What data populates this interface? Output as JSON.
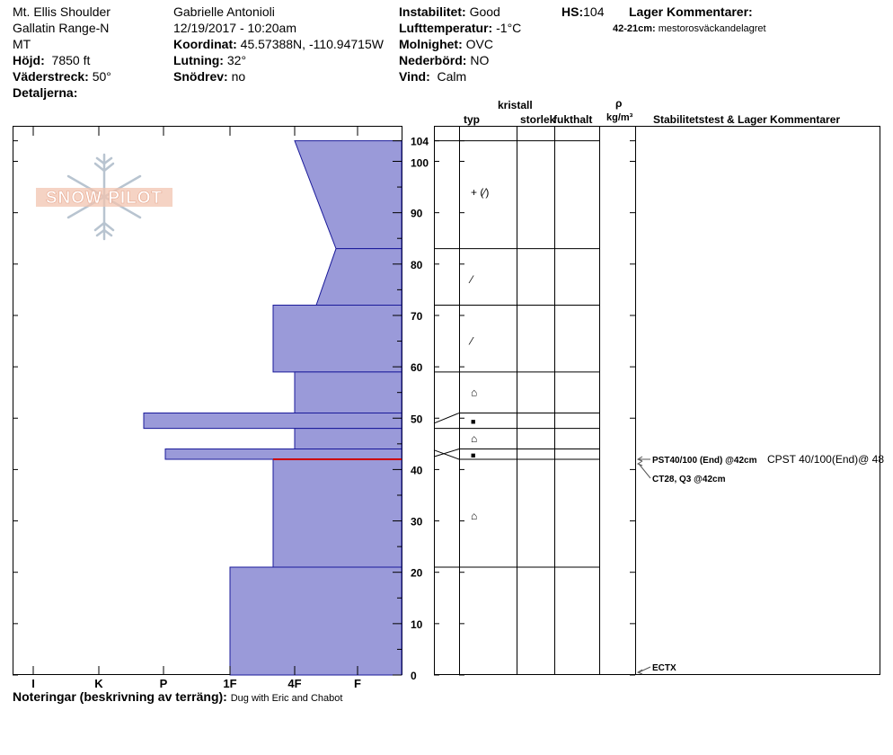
{
  "header": {
    "col1": {
      "location": "Mt. Ellis Shoulder",
      "range": "Gallatin Range-N",
      "state": "MT",
      "elevation_label": "Höjd:",
      "elevation": "7850 ft",
      "aspect_label": "Väderstreck:",
      "aspect": "50°",
      "details_label": "Detaljerna:"
    },
    "col2": {
      "observer": "Gabrielle Antonioli",
      "datetime": "12/19/2017 - 10:20am",
      "coord_label": "Koordinat:",
      "coord": "45.57388N, -110.94715W",
      "slope_label": "Lutning:",
      "slope": "32°",
      "drift_label": "Snödrev:",
      "drift": "no"
    },
    "col3": {
      "instability_label": "Instabilitet:",
      "instability": "Good",
      "airtemp_label": "Lufttemperatur:",
      "airtemp": "-1°C",
      "sky_label": "Molnighet:",
      "sky": "OVC",
      "precip_label": "Nederbörd:",
      "precip": "NO",
      "wind_label": "Vind:",
      "wind": "Calm"
    },
    "col4": {
      "hs_label": "HS:",
      "hs": "104",
      "layer_comments_label": "Lager Kommentarer:",
      "layer_comment_depth": "42-21cm:",
      "layer_comment_text": "mestorosväckandelagret"
    }
  },
  "logo": {
    "text": "SNOW PILOT"
  },
  "footer": {
    "notes_label": "Noteringar (beskrivning av terräng):",
    "notes": "Dug with Eric and Chabot"
  },
  "chart_data": {
    "type": "bar",
    "title": "",
    "hardness_scale": [
      "I",
      "K",
      "P",
      "1F",
      "4F",
      "F"
    ],
    "ylim": [
      0,
      104
    ],
    "y_ticks": [
      0,
      10,
      20,
      30,
      40,
      50,
      60,
      70,
      80,
      90,
      100,
      104
    ],
    "layers": [
      {
        "top": 104,
        "bottom": 83,
        "hardness_top": "4F",
        "hardness_bottom": "F-",
        "grain": "+ (⁄)"
      },
      {
        "top": 83,
        "bottom": 72,
        "hardness_top": "F-",
        "hardness_bottom": "4F-",
        "grain": "⁄"
      },
      {
        "top": 72,
        "bottom": 59,
        "hardness_top": "4F+",
        "hardness_bottom": "4F+",
        "grain": "⁄"
      },
      {
        "top": 59,
        "bottom": 51,
        "hardness_top": "4F",
        "hardness_bottom": "4F",
        "grain": "⌂"
      },
      {
        "top": 51,
        "bottom": 48,
        "hardness_top": "P-",
        "hardness_bottom": "P-",
        "grain": "■"
      },
      {
        "top": 48,
        "bottom": 44,
        "hardness_top": "4F",
        "hardness_bottom": "4F",
        "grain": "⌂"
      },
      {
        "top": 44,
        "bottom": 42,
        "hardness_top": "P+",
        "hardness_bottom": "P+",
        "grain": "■"
      },
      {
        "top": 42,
        "bottom": 21,
        "hardness_top": "4F+",
        "hardness_bottom": "4F+",
        "grain": "⌂"
      },
      {
        "top": 21,
        "bottom": 0,
        "hardness_top": "1F",
        "hardness_bottom": "1F",
        "grain": ""
      }
    ],
    "grain_marks": [
      {
        "depth": 94,
        "symbol": "+ (⁄)"
      },
      {
        "depth": 77,
        "symbol": "⁄"
      },
      {
        "depth": 65,
        "symbol": "⁄"
      },
      {
        "depth": 55,
        "symbol": "⌂"
      },
      {
        "depth": 49.5,
        "symbol": "■"
      },
      {
        "depth": 46,
        "symbol": "⌂"
      },
      {
        "depth": 43,
        "symbol": "■"
      },
      {
        "depth": 31,
        "symbol": "⌂"
      }
    ],
    "critical_layer_depth": 42,
    "table_headers": {
      "typ": "typ",
      "kristall": "kristall",
      "storlek": "storlek",
      "fukthalt": "fukthalt",
      "rho": "ρ",
      "density_unit": "kg/m³",
      "stability": "Stabilitetstest & Lager Kommentarer"
    },
    "stability_tests": [
      {
        "depth": 42,
        "label": "PST40/100 (End) @42cm",
        "extra": "CPST 40/100(End)@ 48"
      },
      {
        "depth": 42,
        "label": "CT28, Q3 @42cm",
        "extra": ""
      },
      {
        "depth": 0,
        "label": "ECTX",
        "extra": ""
      }
    ],
    "colors": {
      "bar_fill": "#9a9ad9",
      "bar_stroke": "#1a1a9a",
      "critical_line": "#cc0000"
    }
  }
}
